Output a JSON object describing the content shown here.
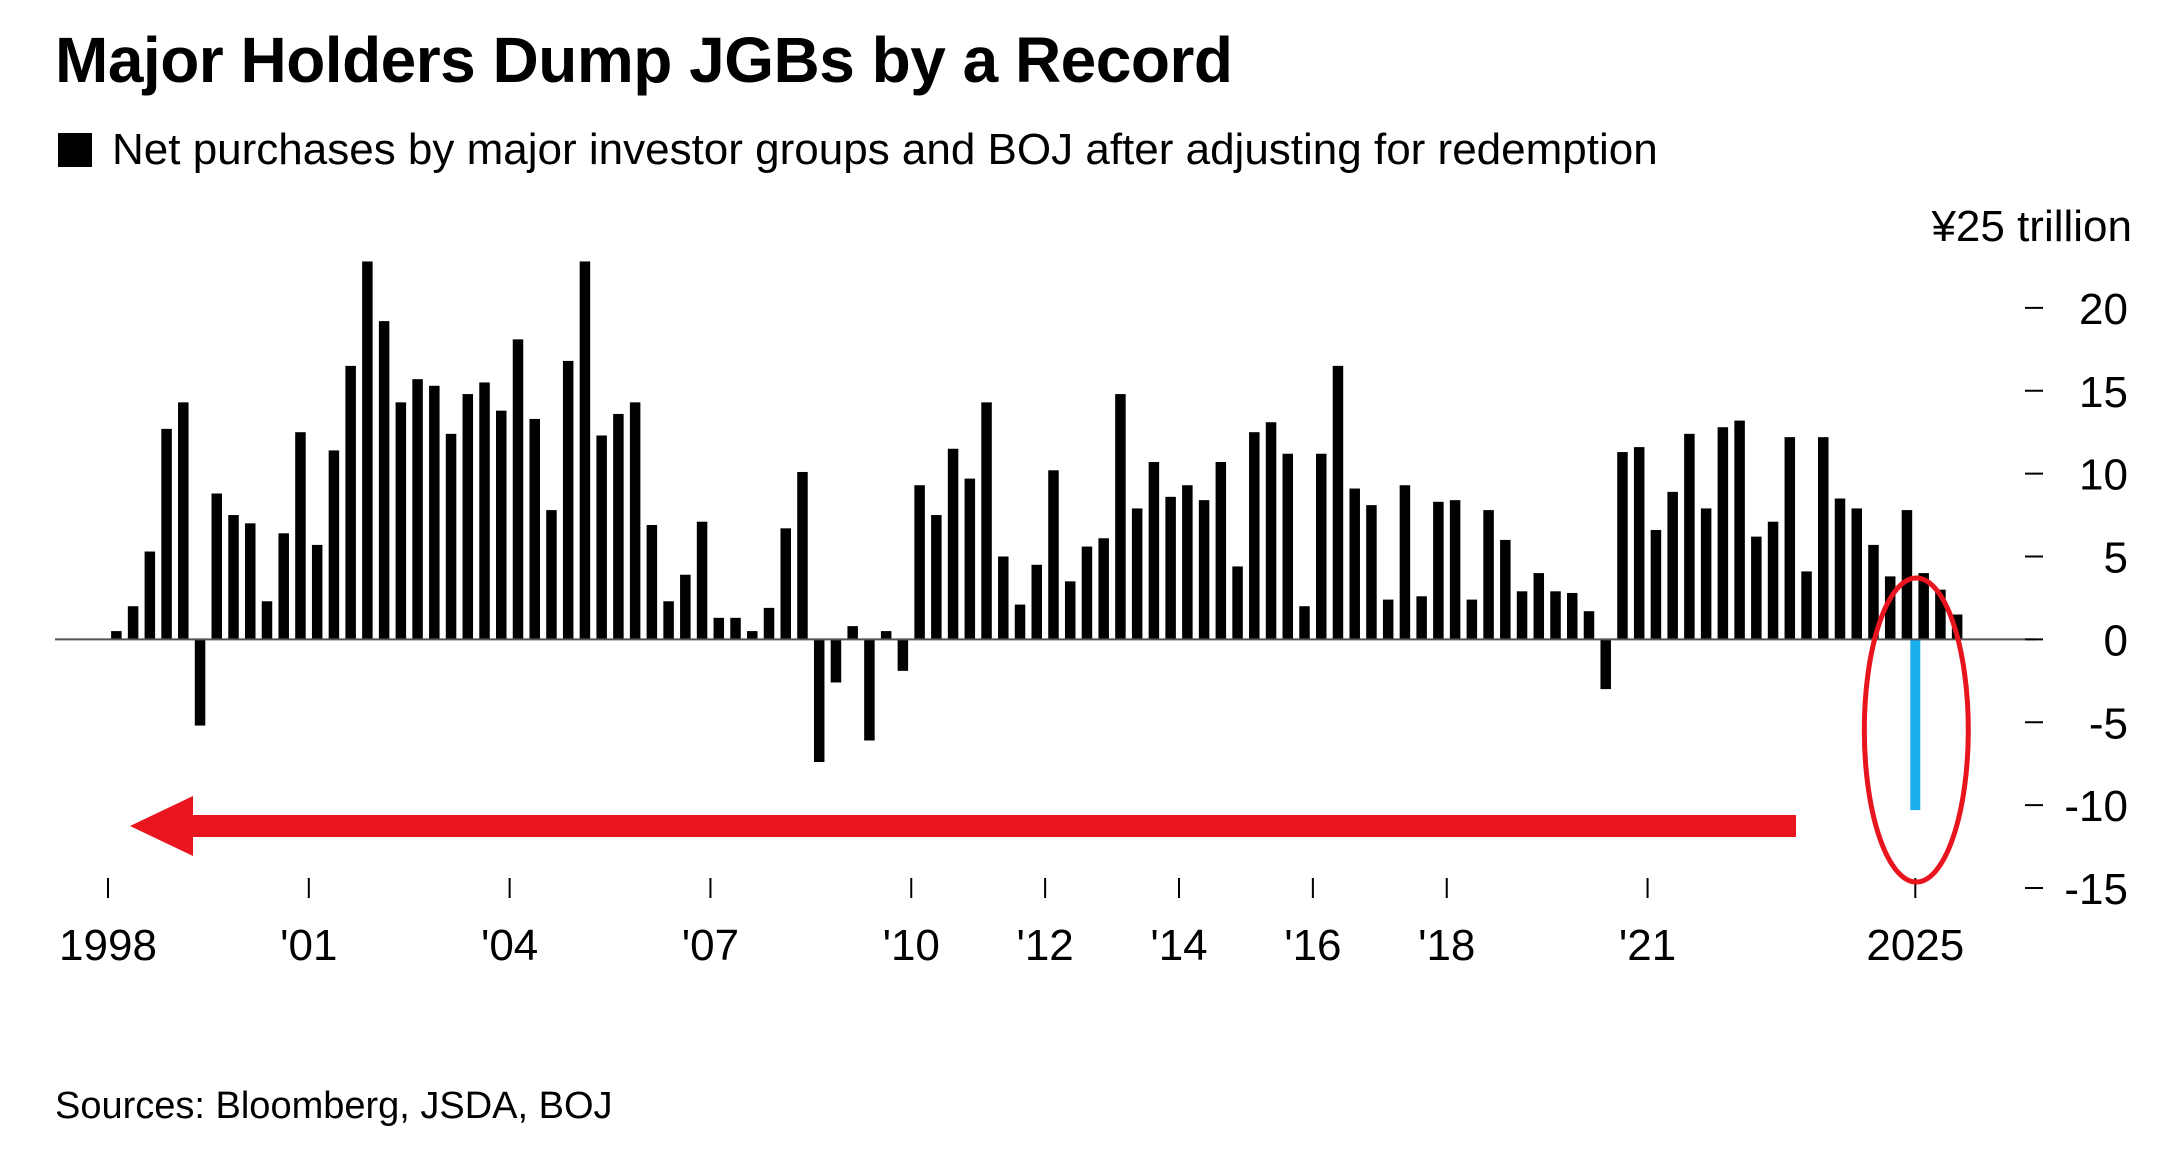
{
  "chart_data": {
    "type": "bar",
    "title": "Major Holders Dump JGBs by a Record",
    "subtitle": "",
    "series": [
      {
        "name": "Net purchases by major investor groups and BOJ after adjusting for redemption",
        "color": "#000000",
        "values": [
          0.5,
          2,
          5.3,
          12.7,
          14.3,
          -5.2,
          8.8,
          7.5,
          7,
          2.3,
          6.4,
          12.5,
          5.7,
          11.4,
          16.5,
          22.8,
          19.2,
          14.3,
          15.7,
          15.3,
          12.4,
          14.8,
          15.5,
          13.8,
          18.1,
          13.3,
          7.8,
          16.8,
          22.8,
          12.3,
          13.6,
          14.3,
          6.9,
          2.3,
          3.9,
          7.1,
          1.3,
          1.3,
          0.5,
          1.9,
          6.7,
          10.1,
          -7.4,
          -2.6,
          0.8,
          -6.1,
          0.5,
          -1.9,
          9.3,
          7.5,
          11.5,
          9.7,
          14.3,
          5,
          2.1,
          4.5,
          10.2,
          3.5,
          5.6,
          6.1,
          14.8,
          7.9,
          10.7,
          8.6,
          9.3,
          8.4,
          10.7,
          4.4,
          12.5,
          13.1,
          11.2,
          2,
          11.2,
          16.5,
          9.1,
          8.1,
          2.4,
          9.3,
          2.6,
          8.3,
          8.4,
          2.4,
          7.8,
          6,
          2.9,
          4,
          2.9,
          2.8,
          1.7,
          -3,
          11.3,
          11.6,
          6.6,
          8.9,
          12.4,
          7.9,
          12.8,
          13.2,
          6.2,
          7.1,
          12.2,
          4.1,
          12.2,
          8.5,
          7.9,
          5.7,
          3.8,
          7.8,
          4,
          3,
          1.5
        ]
      },
      {
        "name": "",
        "color": "#1aaeed",
        "x": [
          2025.0
        ],
        "values": [
          -10.3
        ]
      }
    ],
    "x_start": 1998.125,
    "x_step": 0.25,
    "xlim": [
      1998,
      2025.1
    ],
    "x_ticks": [
      {
        "value": 1998,
        "label": "1998"
      },
      {
        "value": 2001,
        "label": "'01"
      },
      {
        "value": 2004,
        "label": "'04"
      },
      {
        "value": 2007,
        "label": "'07"
      },
      {
        "value": 2010,
        "label": "'10"
      },
      {
        "value": 2012,
        "label": "'12"
      },
      {
        "value": 2014,
        "label": "'14"
      },
      {
        "value": 2016,
        "label": "'16"
      },
      {
        "value": 2018,
        "label": "'18"
      },
      {
        "value": 2021,
        "label": "'21"
      },
      {
        "value": 2025,
        "label": "2025"
      }
    ],
    "y_unit_label": "¥25 trillion",
    "y_ticks": [
      {
        "value": 20,
        "label": "20"
      },
      {
        "value": 15,
        "label": "15"
      },
      {
        "value": 10,
        "label": "10"
      },
      {
        "value": 5,
        "label": "5"
      },
      {
        "value": 0,
        "label": "0"
      },
      {
        "value": -5,
        "label": "-5"
      },
      {
        "value": -10,
        "label": "-10"
      },
      {
        "value": -15,
        "label": "-15"
      }
    ],
    "ylim": [
      -15,
      25
    ],
    "y_axis_side": "right",
    "grid": false,
    "legend_position": "top-left",
    "annotations": [
      {
        "type": "ellipse",
        "target": "latest bar",
        "color": "#e8141e"
      },
      {
        "type": "arrow",
        "direction": "left",
        "color": "#e8141e"
      }
    ]
  },
  "source_text": "Sources: Bloomberg, JSDA, BOJ"
}
